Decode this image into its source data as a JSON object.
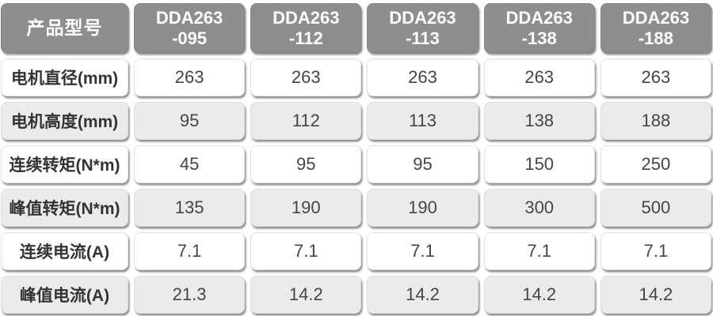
{
  "table": {
    "corner_label": "产品型号",
    "columns": [
      {
        "line1": "DDA263",
        "line2": "-095"
      },
      {
        "line1": "DDA263",
        "line2": "-112"
      },
      {
        "line1": "DDA263",
        "line2": "-113"
      },
      {
        "line1": "DDA263",
        "line2": "-138"
      },
      {
        "line1": "DDA263",
        "line2": "-188"
      }
    ],
    "rows": [
      {
        "label": "电机直径(mm)",
        "values": [
          "263",
          "263",
          "263",
          "263",
          "263"
        ]
      },
      {
        "label": "电机高度(mm)",
        "values": [
          "95",
          "112",
          "113",
          "138",
          "188"
        ]
      },
      {
        "label": "连续转矩(N*m)",
        "values": [
          "45",
          "95",
          "95",
          "150",
          "250"
        ]
      },
      {
        "label": "峰值转矩(N*m)",
        "values": [
          "135",
          "190",
          "190",
          "300",
          "500"
        ]
      },
      {
        "label": "连续电流(A)",
        "values": [
          "7.1",
          "7.1",
          "7.1",
          "7.1",
          "7.1"
        ]
      },
      {
        "label": "峰值电流(A)",
        "values": [
          "21.3",
          "14.2",
          "14.2",
          "14.2",
          "14.2"
        ]
      }
    ]
  },
  "colors": {
    "header_bg": "#8e8e8e",
    "header_text": "#ffffff",
    "row_bg_white": "#ffffff",
    "row_bg_alt": "#ebebeb",
    "label_text": "#333333",
    "value_text": "#454545"
  },
  "chart_data": {
    "type": "table",
    "columns": [
      "产品型号",
      "DDA263-095",
      "DDA263-112",
      "DDA263-113",
      "DDA263-138",
      "DDA263-188"
    ],
    "rows": [
      [
        "电机直径(mm)",
        263,
        263,
        263,
        263,
        263
      ],
      [
        "电机高度(mm)",
        95,
        112,
        113,
        138,
        188
      ],
      [
        "连续转矩(N*m)",
        45,
        95,
        95,
        150,
        250
      ],
      [
        "峰值转矩(N*m)",
        135,
        190,
        190,
        300,
        500
      ],
      [
        "连续电流(A)",
        7.1,
        7.1,
        7.1,
        7.1,
        7.1
      ],
      [
        "峰值电流(A)",
        21.3,
        14.2,
        14.2,
        14.2,
        14.2
      ]
    ]
  }
}
